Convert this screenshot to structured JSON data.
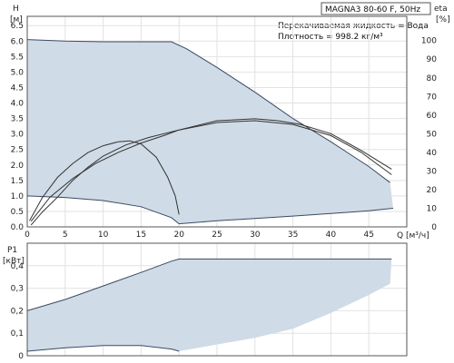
{
  "header": {
    "model": "MAGNA3 80-60 F, 50Hz",
    "liquid": "Перекачиваемая жидкость = Вода",
    "density": "Плотность = 998.2 кг/м³"
  },
  "colors": {
    "envelope": "#cfdbe6",
    "line": "#3a4b63",
    "curve": "#333333"
  },
  "chart_data": [
    {
      "type": "area",
      "xlabel": "Q [м³/ч]",
      "ylabel": "H [м]",
      "y2label": "eta [%]",
      "xlim": [
        0,
        50
      ],
      "ylim": [
        0,
        6.8
      ],
      "y2lim": [
        0,
        113
      ],
      "grid": true,
      "xticks": [
        "0",
        "5",
        "10",
        "15",
        "20",
        "25",
        "30",
        "35",
        "40",
        "45"
      ],
      "yticks": [
        "0.0",
        "0.5",
        "1.0",
        "1.5",
        "2.0",
        "2.5",
        "3.0",
        "3.5",
        "4.0",
        "4.5",
        "5.0",
        "5.5",
        "6.0",
        "6.5"
      ],
      "y2ticks": [
        "0",
        "10",
        "20",
        "30",
        "40",
        "50",
        "60",
        "70",
        "80",
        "90",
        "100"
      ],
      "envelope": {
        "upper": [
          [
            0,
            6.05
          ],
          [
            5,
            6.0
          ],
          [
            10,
            5.98
          ],
          [
            15,
            5.98
          ],
          [
            19,
            5.98
          ],
          [
            21,
            5.75
          ],
          [
            25,
            5.15
          ],
          [
            30,
            4.35
          ],
          [
            35,
            3.5
          ],
          [
            40,
            2.75
          ],
          [
            45,
            1.95
          ],
          [
            47.8,
            1.43
          ]
        ],
        "lower": [
          [
            0,
            1.0
          ],
          [
            5,
            0.95
          ],
          [
            10,
            0.85
          ],
          [
            15,
            0.65
          ],
          [
            19,
            0.3
          ],
          [
            20,
            0.1
          ],
          [
            25,
            0.2
          ],
          [
            30,
            0.27
          ],
          [
            35,
            0.35
          ],
          [
            40,
            0.43
          ],
          [
            45,
            0.52
          ],
          [
            48.2,
            0.6
          ]
        ]
      },
      "series": [
        {
          "curve": "min-speed-head",
          "points": [
            [
              0.3,
              0.2
            ],
            [
              2,
              0.95
            ],
            [
              4,
              1.6
            ],
            [
              6,
              2.05
            ],
            [
              8,
              2.4
            ],
            [
              10,
              2.62
            ],
            [
              12,
              2.75
            ],
            [
              13.5,
              2.78
            ],
            [
              15,
              2.68
            ],
            [
              17,
              2.25
            ],
            [
              18.5,
              1.6
            ],
            [
              19.5,
              1.0
            ],
            [
              20,
              0.4
            ]
          ]
        },
        {
          "curve": "min-speed-efficiency",
          "points": [
            [
              0.5,
              3
            ],
            [
              3,
              16
            ],
            [
              6,
              26
            ],
            [
              9,
              34
            ],
            [
              12,
              40
            ],
            [
              15,
              45
            ],
            [
              18,
              49
            ],
            [
              20,
              52
            ],
            [
              25,
              57
            ],
            [
              30,
              58
            ],
            [
              33,
              57
            ],
            [
              36,
              55
            ],
            [
              40,
              50
            ],
            [
              44,
              41
            ],
            [
              48,
              31
            ]
          ]
        },
        {
          "curve": "max-speed-efficiency",
          "points": [
            [
              0.5,
              1
            ],
            [
              2,
              8
            ],
            [
              4,
              16
            ],
            [
              6,
              25
            ],
            [
              8,
              32
            ],
            [
              10,
              38
            ],
            [
              13,
              44
            ],
            [
              16,
              48
            ],
            [
              20,
              52
            ],
            [
              25,
              56
            ],
            [
              30,
              57
            ],
            [
              35,
              55
            ],
            [
              40,
              49
            ],
            [
              44,
              40
            ],
            [
              48,
              28
            ]
          ]
        }
      ]
    },
    {
      "type": "area",
      "xlabel": "",
      "ylabel": "P1 [кВт]",
      "xlim": [
        0,
        50
      ],
      "ylim": [
        0,
        0.5
      ],
      "grid": true,
      "yticks": [
        "0",
        "0,1",
        "0,2",
        "0,3",
        "0,4"
      ],
      "envelope": {
        "upper": [
          [
            0,
            0.2
          ],
          [
            5,
            0.25
          ],
          [
            10,
            0.31
          ],
          [
            15,
            0.37
          ],
          [
            19,
            0.42
          ],
          [
            20,
            0.43
          ],
          [
            48,
            0.43
          ]
        ],
        "lower": [
          [
            0,
            0.02
          ],
          [
            5,
            0.035
          ],
          [
            10,
            0.045
          ],
          [
            15,
            0.045
          ],
          [
            19,
            0.03
          ],
          [
            20,
            0.02
          ],
          [
            25,
            0.05
          ],
          [
            30,
            0.08
          ],
          [
            35,
            0.12
          ],
          [
            40,
            0.19
          ],
          [
            45,
            0.27
          ],
          [
            47.8,
            0.32
          ],
          [
            48,
            0.43
          ]
        ]
      }
    }
  ]
}
